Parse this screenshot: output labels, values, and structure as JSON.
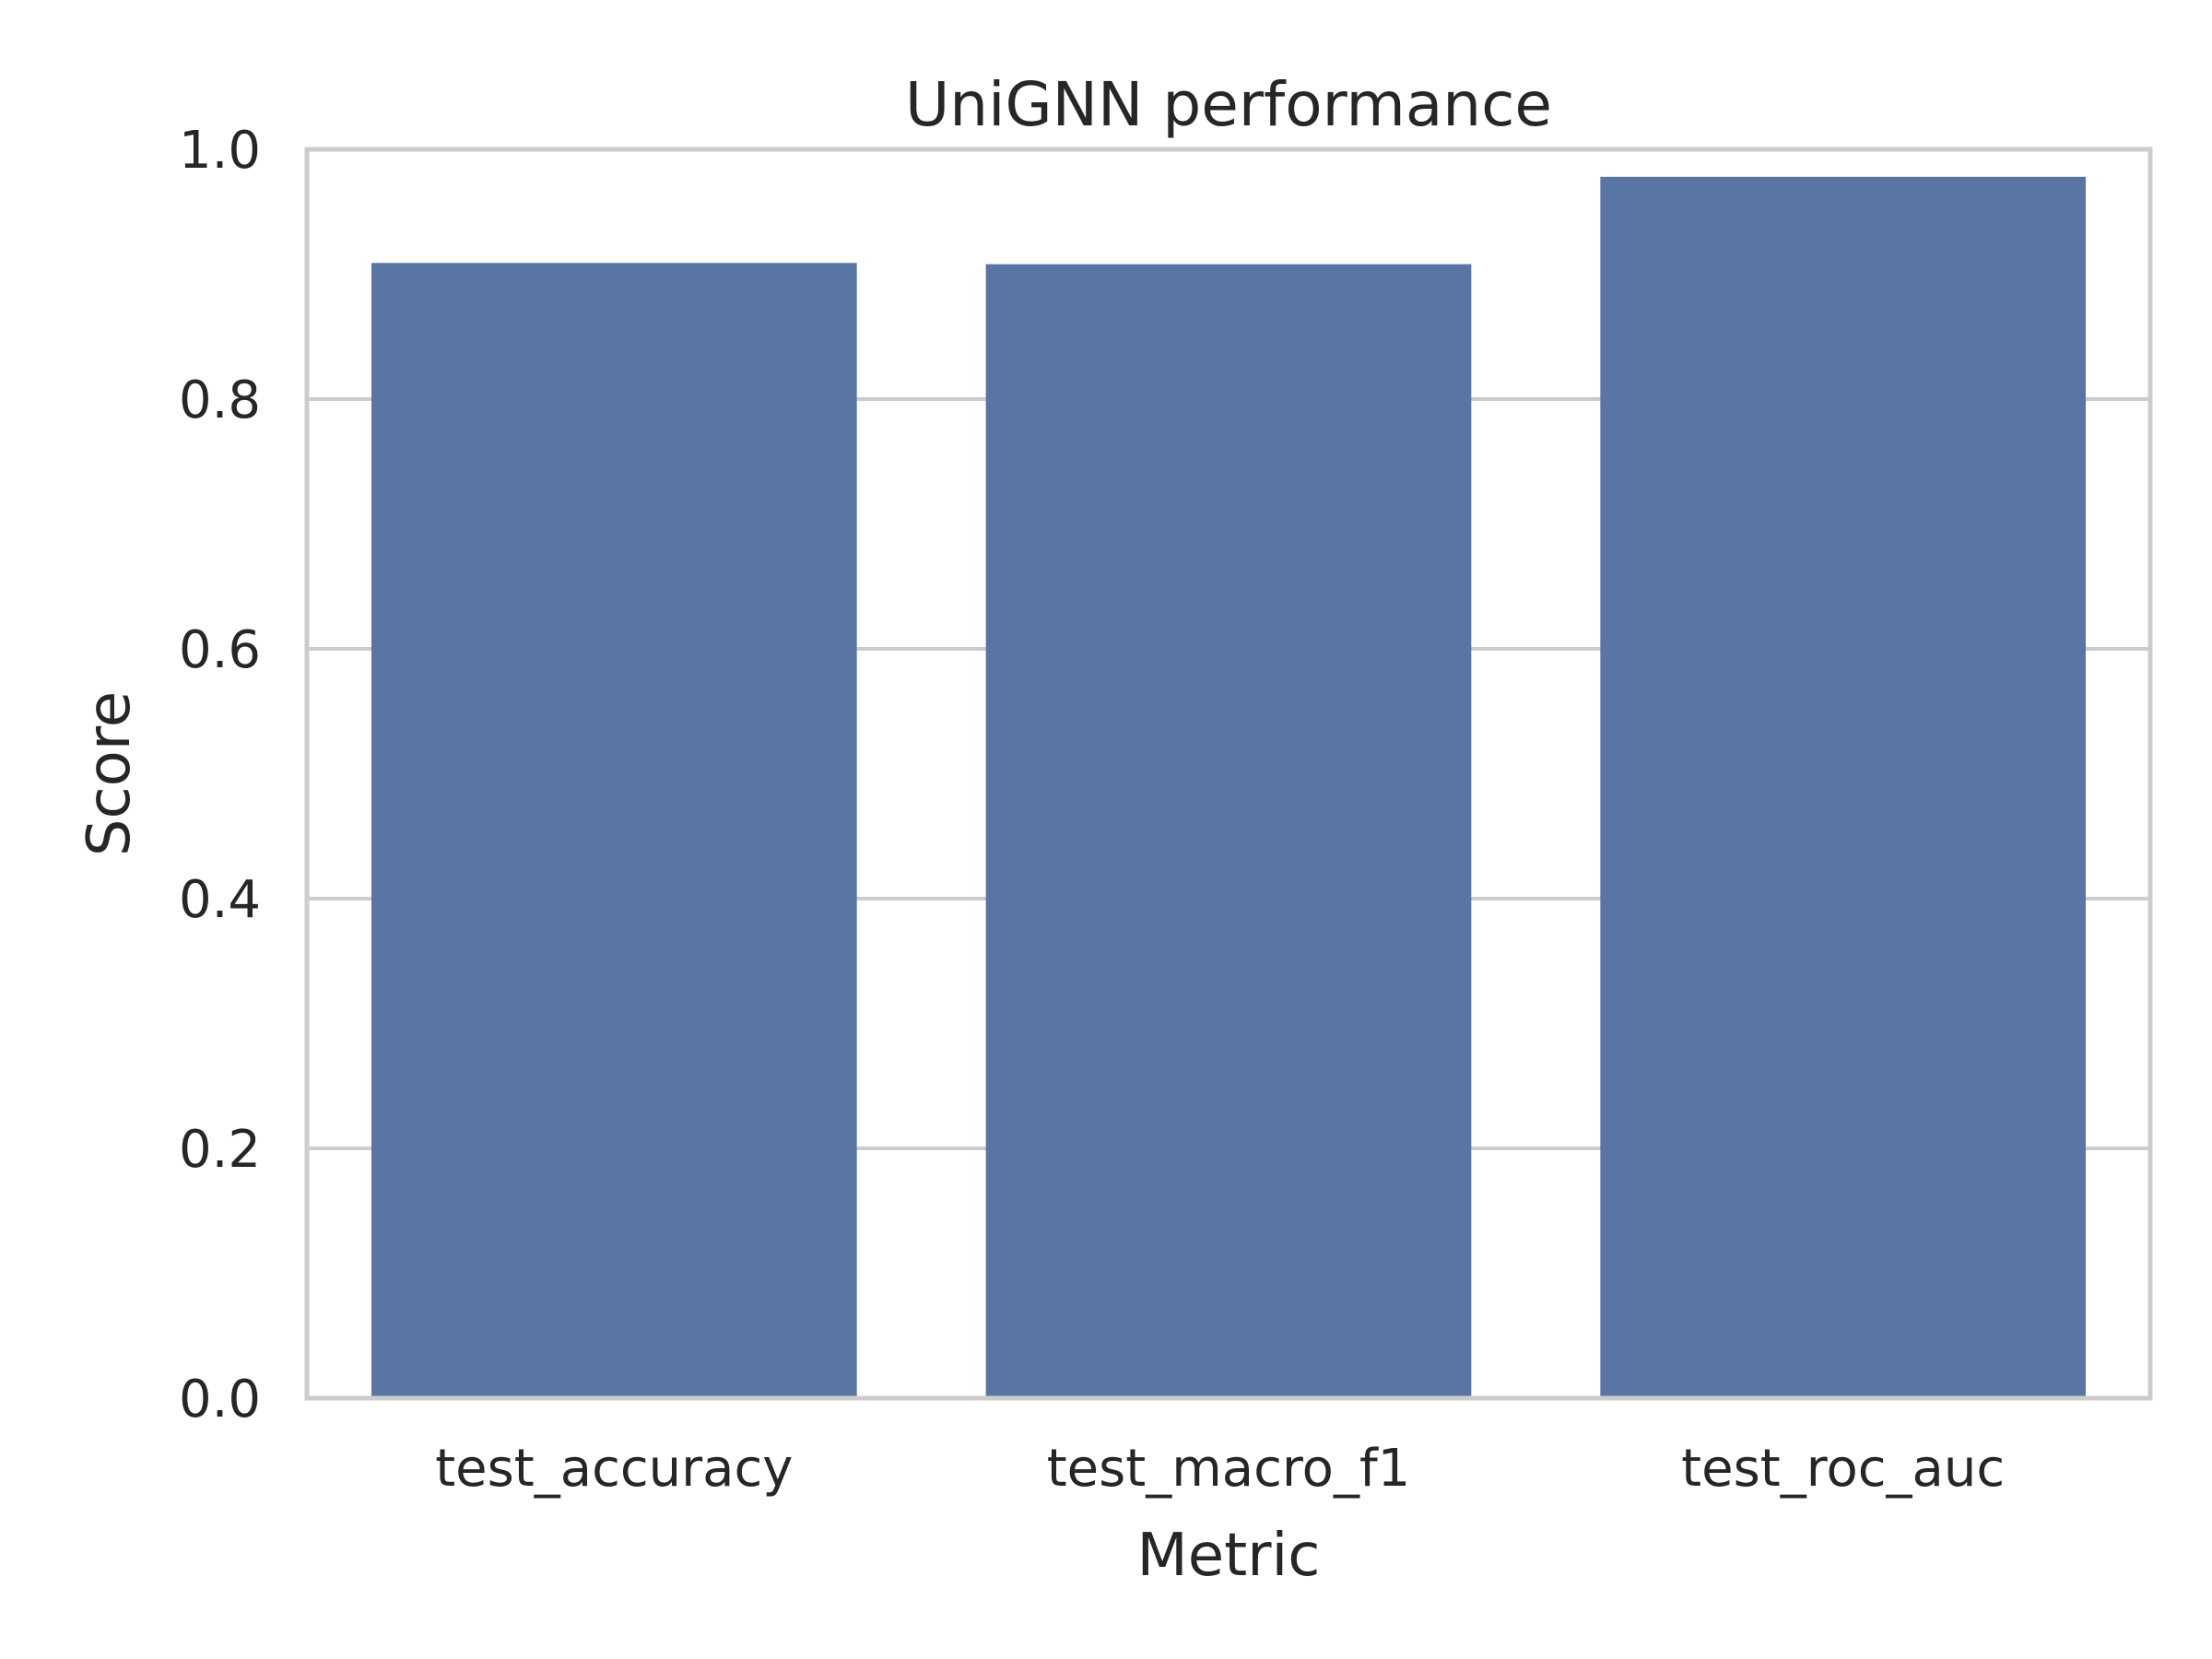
{
  "chart_data": {
    "type": "bar",
    "title": "UniGNN performance",
    "xlabel": "Metric",
    "ylabel": "Score",
    "categories": [
      "test_accuracy",
      "test_macro_f1",
      "test_roc_auc"
    ],
    "values": [
      0.909,
      0.908,
      0.978
    ],
    "ylim": [
      0,
      1.0
    ],
    "yticks": [
      "0.0",
      "0.2",
      "0.4",
      "0.6",
      "0.8",
      "1.0"
    ],
    "grid": true,
    "colors": {
      "bar": "#5975a4",
      "grid": "#cccccc",
      "frame": "#cccccc",
      "text": "#262626"
    }
  }
}
